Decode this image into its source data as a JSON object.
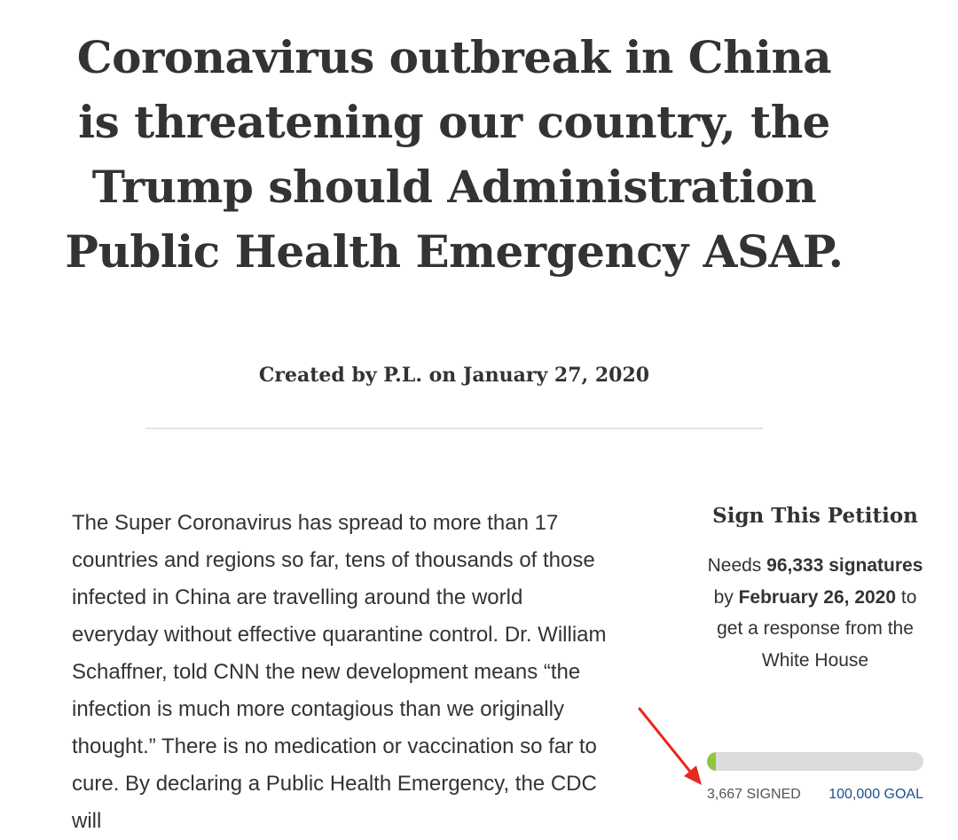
{
  "petition": {
    "title": "Coronavirus outbreak in China is threatening our country, the Trump should Administration Public Health Emergency ASAP.",
    "byline": "Created by P.L. on January 27, 2020",
    "body": "The Super Coronavirus has spread to more than 17 countries and regions so far, tens of thousands of those infected in China are travelling around the world everyday without effective quarantine control. Dr. William Schaffner, told CNN the new development means “the infection is much more contagious than we originally thought.” There is no medication or vaccination so far to cure. By declaring a Public Health Emergency, the CDC will"
  },
  "sidebar": {
    "heading": "Sign This Petition",
    "needs_prefix": "Needs ",
    "needs_count": "96,333 signatures",
    "needs_by": " by ",
    "deadline": "February 26, 2020",
    "needs_suffix": " to get a response from the White House"
  },
  "progress": {
    "signed_label": "3,667 SIGNED",
    "goal_label": "100,000 GOAL",
    "fraction": 0.03667,
    "fill_color": "#8dc63f",
    "track_color": "#dcdcdc"
  },
  "annotation": {
    "icon": "red-arrow-icon",
    "color": "#e8281e"
  }
}
